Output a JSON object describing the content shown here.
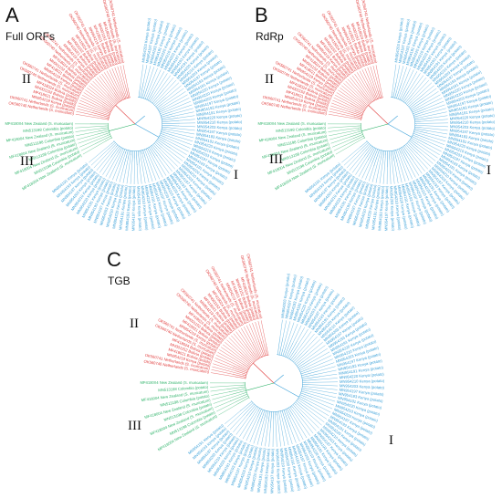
{
  "panels": [
    {
      "letter": "A",
      "subtitle": "Full ORFs",
      "clades": [
        "II",
        "III",
        "I"
      ],
      "tip_labels": {
        "clade_I": [
          "MN954191 Kenya (potato)",
          "MN954193 Kenya (potato)",
          "MN954197 Kenya (potato)",
          "MN954203 Kenya (potato)",
          "MN954210 Kenya (potato)",
          "MN954220 Kenya (potato)"
        ],
        "clade_II": [
          "OK560741 Netherlands (S. muricatum)",
          "OK560740 Netherlands (S. muricatum)",
          "MF418024 Bolivia (potato)",
          "MH001152 Bolivia (potato)",
          "MF418021 Bolivia (potato)",
          "MN954219 Kenya (potato)"
        ],
        "clade_III": [
          "MF418004 New Zealand (S. muricatum)",
          "MN513198 Colombia (potato)"
        ]
      }
    },
    {
      "letter": "B",
      "subtitle": "RdRp",
      "clades": [
        "II",
        "III",
        "I"
      ],
      "tip_labels": {
        "clade_I": [
          "MN954191 Kenya (potato)",
          "MN954193 Kenya (potato)",
          "MN954197 Kenya (potato)",
          "MN954203 Kenya (potato)",
          "MN954210 Kenya (potato)",
          "MN954220 Kenya (potato)"
        ],
        "clade_II": [
          "OK560741 Netherlands (S. muricatum)",
          "OK560740 Netherlands (S. muricatum)",
          "MF418024 Bolivia (potato)",
          "MH001152 Bolivia (potato)",
          "MF418021 Bolivia (potato)",
          "MN954219 Kenya (potato)"
        ],
        "clade_III": [
          "MF418004 New Zealand (S. muricatum)",
          "MN513198 Colombia (potato)"
        ]
      }
    },
    {
      "letter": "C",
      "subtitle": "TGB",
      "clades": [
        "II",
        "III",
        "I"
      ],
      "tip_labels": {
        "clade_I": [
          "MN954191 Kenya (potato)",
          "MN954193 Kenya (potato)",
          "MN954197 Kenya (potato)",
          "MN954203 Kenya (potato)",
          "MN954210 Kenya (potato)",
          "MN954220 Kenya (potato)"
        ],
        "clade_II": [
          "OK560741 Netherlands (S. muricatum)",
          "OK560740 Netherlands (S. muricatum)",
          "MF418024 Bolivia (potato)",
          "MH001152 Bolivia (potato)",
          "MF418021 Bolivia (potato)",
          "MN954219 Kenya (potato)"
        ],
        "clade_III": [
          "MF418004 New Zealand (S. muricatum)",
          "MN513198 Colombia (potato)"
        ]
      }
    }
  ],
  "colors": {
    "clade_I": "#3aa0d8",
    "clade_II": "#e03a3a",
    "clade_III": "#2fb36a",
    "text": "#111111"
  }
}
